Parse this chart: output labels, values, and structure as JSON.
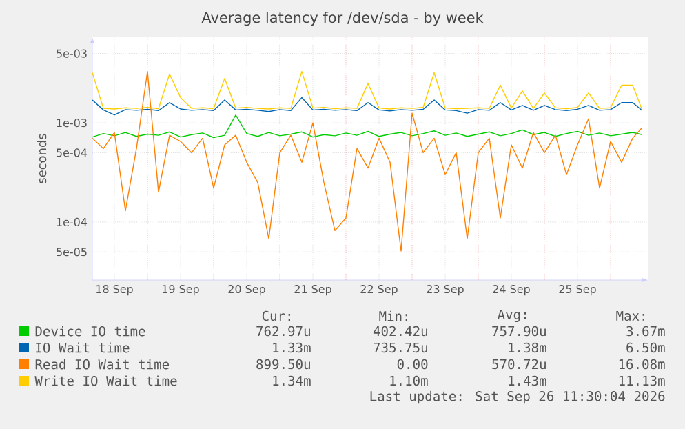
{
  "chart_data": {
    "type": "line",
    "title": "Average latency for /dev/sda - by week",
    "ylabel": "seconds",
    "log": true,
    "grid": true,
    "legend": "bottom",
    "marker": "none",
    "line_style": "solid",
    "xlim": [
      "2026-09-18T04:00",
      "2026-09-26T13:30"
    ],
    "ylim": [
      2.6e-05,
      0.0073
    ],
    "yticks": [
      {
        "value": 0.005,
        "label": "5e-03"
      },
      {
        "value": 0.001,
        "label": "1e-03"
      },
      {
        "value": 0.0005,
        "label": "5e-04"
      },
      {
        "value": 0.0001,
        "label": "1e-04"
      },
      {
        "value": 5e-05,
        "label": "5e-05"
      }
    ],
    "xticks": [
      {
        "value": "2026-09-18T12:00",
        "label": "18 Sep"
      },
      {
        "value": "2026-09-19T12:00",
        "label": "19 Sep"
      },
      {
        "value": "2026-09-20T12:00",
        "label": "20 Sep"
      },
      {
        "value": "2026-09-21T12:00",
        "label": "21 Sep"
      },
      {
        "value": "2026-09-22T12:00",
        "label": "22 Sep"
      },
      {
        "value": "2026-09-23T12:00",
        "label": "23 Sep"
      },
      {
        "value": "2026-09-24T12:00",
        "label": "24 Sep"
      },
      {
        "value": "2026-09-25T12:00",
        "label": "25 Sep"
      },
      {
        "value": "2026-09-19T00:00",
        "label": null
      },
      {
        "value": "2026-09-20T00:00",
        "label": null
      },
      {
        "value": "2026-09-21T00:00",
        "label": null
      },
      {
        "value": "2026-09-22T00:00",
        "label": null
      },
      {
        "value": "2026-09-23T00:00",
        "label": null
      },
      {
        "value": "2026-09-24T00:00",
        "label": null
      },
      {
        "value": "2026-09-25T00:00",
        "label": null
      },
      {
        "value": "2026-09-26T00:00",
        "label": null
      }
    ],
    "x": [
      "2026-09-18T04:00",
      "2026-09-18T08:00",
      "2026-09-18T12:00",
      "2026-09-18T16:00",
      "2026-09-18T20:00",
      "2026-09-19T00:00",
      "2026-09-19T04:00",
      "2026-09-19T08:00",
      "2026-09-19T12:00",
      "2026-09-19T16:00",
      "2026-09-19T20:00",
      "2026-09-20T00:00",
      "2026-09-20T04:00",
      "2026-09-20T08:00",
      "2026-09-20T12:00",
      "2026-09-20T16:00",
      "2026-09-20T20:00",
      "2026-09-21T00:00",
      "2026-09-21T04:00",
      "2026-09-21T08:00",
      "2026-09-21T12:00",
      "2026-09-21T16:00",
      "2026-09-21T20:00",
      "2026-09-22T00:00",
      "2026-09-22T04:00",
      "2026-09-22T08:00",
      "2026-09-22T12:00",
      "2026-09-22T16:00",
      "2026-09-22T20:00",
      "2026-09-23T00:00",
      "2026-09-23T04:00",
      "2026-09-23T08:00",
      "2026-09-23T12:00",
      "2026-09-23T16:00",
      "2026-09-23T20:00",
      "2026-09-24T00:00",
      "2026-09-24T04:00",
      "2026-09-24T08:00",
      "2026-09-24T12:00",
      "2026-09-24T16:00",
      "2026-09-24T20:00",
      "2026-09-25T00:00",
      "2026-09-25T04:00",
      "2026-09-25T08:00",
      "2026-09-25T12:00",
      "2026-09-25T16:00",
      "2026-09-25T20:00",
      "2026-09-26T00:00",
      "2026-09-26T04:00",
      "2026-09-26T08:00",
      "2026-09-26T11:30"
    ],
    "series": [
      {
        "name": "Device IO time",
        "color": "#00cc00",
        "values": [
          0.00072,
          0.00078,
          0.00074,
          0.0008,
          0.00073,
          0.00077,
          0.00075,
          0.00081,
          0.00072,
          0.00076,
          0.00079,
          0.00071,
          0.00075,
          0.0012,
          0.00078,
          0.00073,
          0.0008,
          0.00074,
          0.00077,
          0.00081,
          0.00072,
          0.00076,
          0.00074,
          0.00079,
          0.00075,
          0.00082,
          0.00073,
          0.00077,
          0.0008,
          0.00074,
          0.00078,
          0.00083,
          0.00075,
          0.00079,
          0.00073,
          0.00077,
          0.00081,
          0.00074,
          0.00078,
          0.00085,
          0.00076,
          0.0008,
          0.00073,
          0.00078,
          0.00082,
          0.00075,
          0.00079,
          0.00074,
          0.00077,
          0.0008,
          0.00076
        ]
      },
      {
        "name": "IO Wait time",
        "color": "#0066b3",
        "values": [
          0.0017,
          0.00135,
          0.0012,
          0.00136,
          0.00134,
          0.00137,
          0.00133,
          0.0016,
          0.00138,
          0.00134,
          0.00136,
          0.00133,
          0.0017,
          0.00135,
          0.00137,
          0.00134,
          0.0013,
          0.00136,
          0.00133,
          0.0018,
          0.00135,
          0.00137,
          0.00134,
          0.00136,
          0.00133,
          0.0016,
          0.00135,
          0.00132,
          0.00136,
          0.00134,
          0.00137,
          0.0017,
          0.00135,
          0.00133,
          0.00125,
          0.00136,
          0.00134,
          0.0016,
          0.00135,
          0.0015,
          0.00134,
          0.0015,
          0.00136,
          0.00133,
          0.00137,
          0.0015,
          0.00134,
          0.00136,
          0.0016,
          0.0016,
          0.00133
        ]
      },
      {
        "name": "Read IO Wait time",
        "color": "#ff8000",
        "values": [
          0.0007,
          0.00055,
          0.0008,
          0.00013,
          0.00055,
          0.0033,
          0.0002,
          0.00075,
          0.00065,
          0.0005,
          0.0007,
          0.00022,
          0.0006,
          0.00075,
          0.0004,
          0.00025,
          6.8e-05,
          0.0005,
          0.00075,
          0.0004,
          0.001,
          0.00025,
          8.2e-05,
          0.00011,
          0.00055,
          0.00035,
          0.0007,
          0.0004,
          5.1e-05,
          0.00125,
          0.0005,
          0.0007,
          0.0003,
          0.0005,
          6.8e-05,
          0.0005,
          0.0007,
          0.00011,
          0.0006,
          0.00035,
          0.0008,
          0.0005,
          0.00075,
          0.0003,
          0.0006,
          0.0011,
          0.00022,
          0.00065,
          0.0004,
          0.0007,
          0.0009
        ]
      },
      {
        "name": "Write IO Wait time",
        "color": "#ffcc00",
        "values": [
          0.0032,
          0.0014,
          0.00138,
          0.00142,
          0.0014,
          0.00143,
          0.00139,
          0.0031,
          0.0018,
          0.0014,
          0.00142,
          0.00139,
          0.0028,
          0.00141,
          0.00143,
          0.0014,
          0.00138,
          0.00142,
          0.0014,
          0.0033,
          0.00141,
          0.00143,
          0.00139,
          0.00142,
          0.0014,
          0.0025,
          0.00141,
          0.00138,
          0.00142,
          0.0014,
          0.00143,
          0.0032,
          0.00141,
          0.00139,
          0.0014,
          0.00142,
          0.0014,
          0.0024,
          0.00141,
          0.0021,
          0.0014,
          0.002,
          0.00142,
          0.00139,
          0.00143,
          0.002,
          0.0014,
          0.00142,
          0.0024,
          0.0024,
          0.00134
        ]
      }
    ],
    "annotations": [
      "Cur:",
      "Min:",
      "Avg:",
      "Max:",
      "762.97u",
      "402.42u",
      "757.90u",
      "3.67m",
      "1.33m",
      "735.75u",
      "1.38m",
      "6.50m",
      "899.50u",
      "0.00",
      "570.72u",
      "16.08m",
      "1.34m",
      "1.10m",
      "1.43m",
      "11.13m",
      "Last update: Sat Sep 26 11:30:04 2026"
    ]
  }
}
